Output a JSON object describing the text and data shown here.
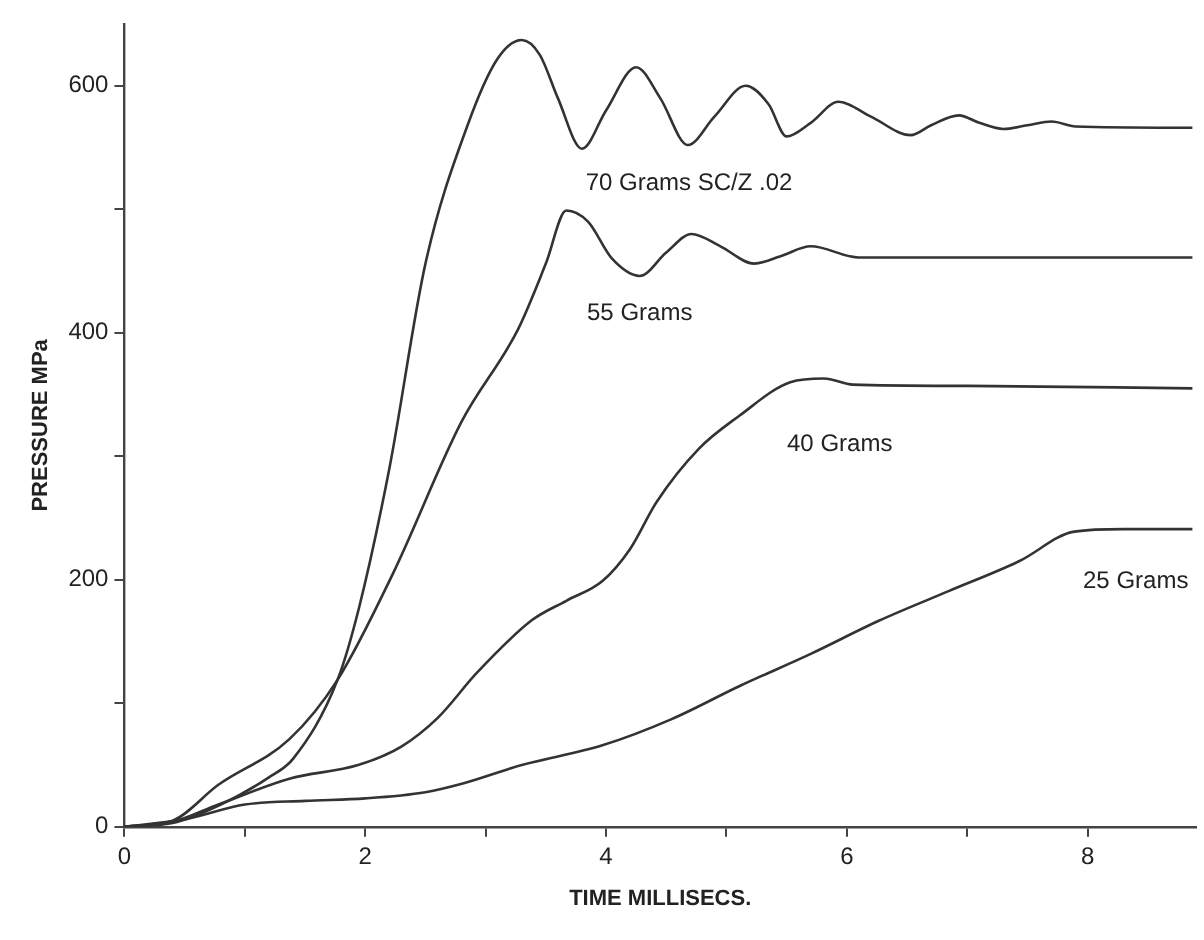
{
  "chart_data": {
    "type": "line",
    "xlabel": "TIME MILLISECS.",
    "ylabel": "PRESSURE MPa",
    "xlim": [
      0,
      8.9
    ],
    "ylim": [
      0,
      650
    ],
    "xticks": [
      0,
      {
        "value": 1,
        "label": null
      },
      2,
      {
        "value": 3,
        "label": null
      },
      4,
      {
        "value": 5,
        "label": null
      },
      6,
      {
        "value": 7,
        "label": null
      },
      8
    ],
    "yticks": [
      0,
      {
        "value": 100,
        "label": null
      },
      200,
      {
        "value": 300,
        "label": null
      },
      400,
      {
        "value": 500,
        "label": null
      },
      600
    ],
    "grid": false,
    "legend": false,
    "marker": "none",
    "line_style": "solid",
    "series": [
      {
        "name": "70 Grams SC/Z .02",
        "color": "#333333",
        "x": [
          0,
          0.4,
          0.8,
          1.2,
          1.4,
          1.77,
          1.95,
          2.2,
          2.5,
          2.85,
          3.1,
          3.3,
          3.45,
          3.6,
          3.8,
          4.0,
          4.25,
          4.45,
          4.68,
          4.9,
          5.16,
          5.35,
          5.5,
          5.7,
          5.93,
          6.2,
          6.53,
          6.7,
          6.93,
          7.1,
          7.3,
          7.5,
          7.7,
          7.9,
          8.87
        ],
        "values": [
          0,
          3,
          18,
          40,
          55,
          119,
          178,
          290,
          456,
          568,
          622,
          637,
          625,
          590,
          549,
          580,
          615,
          590,
          552,
          575,
          600,
          585,
          559,
          570,
          587,
          575,
          560,
          568,
          576,
          570,
          565,
          568,
          571,
          567,
          566
        ]
      },
      {
        "name": "55 Grams",
        "color": "#333333",
        "x": [
          0,
          0.4,
          0.78,
          1.37,
          1.77,
          2.23,
          2.8,
          3.27,
          3.5,
          3.67,
          3.85,
          4.05,
          4.28,
          4.5,
          4.71,
          4.95,
          5.23,
          5.45,
          5.7,
          6.1,
          8.87
        ],
        "values": [
          0,
          5,
          34,
          71,
          119,
          205,
          328,
          403,
          456,
          499,
          490,
          460,
          446,
          465,
          480,
          470,
          456,
          462,
          470,
          461,
          461
        ]
      },
      {
        "name": "40 Grams",
        "color": "#333333",
        "x": [
          0,
          0.4,
          0.78,
          1.37,
          1.94,
          2.3,
          2.6,
          2.93,
          3.38,
          3.67,
          3.97,
          4.2,
          4.42,
          4.77,
          5.11,
          5.53,
          5.81,
          6.05,
          7,
          8.87
        ],
        "values": [
          0,
          4,
          18,
          39,
          50,
          65,
          88,
          125,
          167,
          183,
          199,
          225,
          263,
          306,
          333,
          360,
          363,
          358,
          357,
          355
        ]
      },
      {
        "name": "25 Grams",
        "color": "#333333",
        "x": [
          0,
          0.5,
          1,
          1.5,
          2,
          2.5,
          2.81,
          3.3,
          3.97,
          4.54,
          5.11,
          5.7,
          6.27,
          6.85,
          7.43,
          7.89,
          8.3,
          8.87
        ],
        "values": [
          0,
          6,
          18,
          21,
          23,
          28,
          35,
          50,
          66,
          87,
          114,
          140,
          167,
          191,
          215,
          239,
          241,
          241
        ]
      }
    ]
  }
}
